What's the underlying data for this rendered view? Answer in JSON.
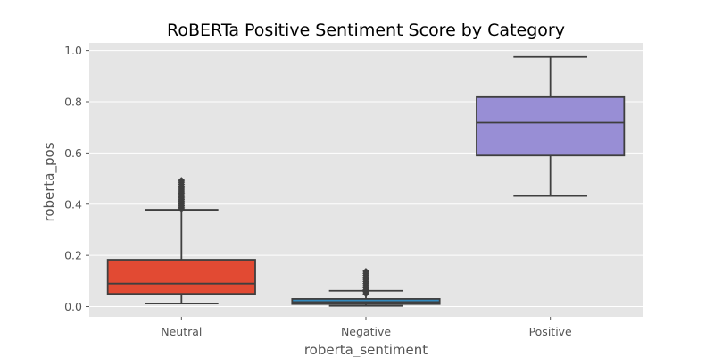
{
  "chart_data": {
    "type": "box",
    "title": "RoBERTa Positive Sentiment Score by Category",
    "xlabel": "roberta_sentiment",
    "ylabel": "roberta_pos",
    "ylim": [
      -0.04,
      1.03
    ],
    "yticks": [
      "0.0",
      "0.2",
      "0.4",
      "0.6",
      "0.8",
      "1.0"
    ],
    "grid": true,
    "categories": [
      "Neutral",
      "Negative",
      "Positive"
    ],
    "boxes": [
      {
        "category": "Neutral",
        "color": "#E24A33",
        "whisker_low": 0.012,
        "q1": 0.05,
        "median": 0.09,
        "q3": 0.183,
        "whisker_high": 0.378,
        "outliers": [
          0.382,
          0.388,
          0.394,
          0.4,
          0.406,
          0.412,
          0.418,
          0.424,
          0.43,
          0.436,
          0.442,
          0.448,
          0.455,
          0.462,
          0.47,
          0.478,
          0.486,
          0.493
        ]
      },
      {
        "category": "Negative",
        "color": "#348ABD",
        "whisker_low": 0.003,
        "q1": 0.01,
        "median": 0.018,
        "q3": 0.03,
        "whisker_high": 0.062,
        "outliers": [
          0.05,
          0.058,
          0.066,
          0.074,
          0.082,
          0.09,
          0.098,
          0.106,
          0.114,
          0.122,
          0.13,
          0.138
        ]
      },
      {
        "category": "Positive",
        "color": "#988ED5",
        "whisker_low": 0.432,
        "q1": 0.59,
        "median": 0.718,
        "q3": 0.818,
        "whisker_high": 0.975,
        "outliers": []
      }
    ]
  }
}
